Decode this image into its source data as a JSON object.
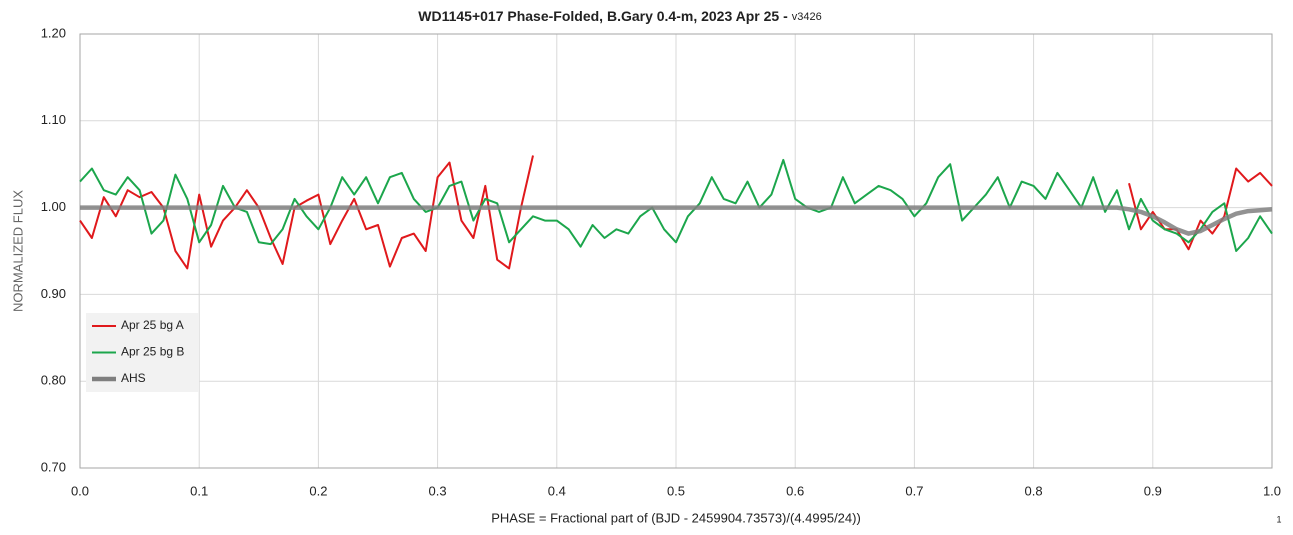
{
  "chart_data": {
    "type": "line",
    "title": "WD1145+017 Phase-Folded, B.Gary 0.4-m, 2023 Apr 25 -",
    "version": "v3426",
    "xlabel": "PHASE = Fractional part of (BJD - 2459904.73573)/(4.4995/24))",
    "ylabel": "NORMALIZED FLUX",
    "footnote": "1",
    "grid": true,
    "legend": "center left",
    "xlim": [
      0,
      1
    ],
    "ylim": [
      0.7,
      1.2
    ],
    "xticks": [
      {
        "value": 0,
        "label": "0.0"
      },
      0.1,
      0.2,
      0.3,
      0.4,
      0.5,
      0.6,
      0.7,
      0.8,
      0.9,
      {
        "value": 1,
        "label": "1.0"
      }
    ],
    "yticks": [
      {
        "value": 0.7,
        "label": "0.70"
      },
      {
        "value": 0.8,
        "label": "0.80"
      },
      {
        "value": 0.9,
        "label": "0.90"
      },
      {
        "value": 1.0,
        "label": "1.00"
      },
      {
        "value": 1.1,
        "label": "1.10"
      },
      {
        "value": 1.2,
        "label": "1.20"
      }
    ],
    "x": [
      0,
      0.01,
      0.02,
      0.03,
      0.04,
      0.05,
      0.06,
      0.07,
      0.08,
      0.09,
      0.1,
      0.11,
      0.12,
      0.13,
      0.14,
      0.15,
      0.16,
      0.17,
      0.18,
      0.19,
      0.2,
      0.21,
      0.22,
      0.23,
      0.24,
      0.25,
      0.26,
      0.27,
      0.28,
      0.29,
      0.3,
      0.31,
      0.32,
      0.33,
      0.34,
      0.35,
      0.36,
      0.37,
      0.38,
      0.39,
      0.4,
      0.41,
      0.42,
      0.43,
      0.44,
      0.45,
      0.46,
      0.47,
      0.48,
      0.49,
      0.5,
      0.51,
      0.52,
      0.53,
      0.54,
      0.55,
      0.56,
      0.57,
      0.58,
      0.59,
      0.6,
      0.61,
      0.62,
      0.63,
      0.64,
      0.65,
      0.66,
      0.67,
      0.68,
      0.69,
      0.7,
      0.71,
      0.72,
      0.73,
      0.74,
      0.75,
      0.76,
      0.77,
      0.78,
      0.79,
      0.8,
      0.81,
      0.82,
      0.83,
      0.84,
      0.85,
      0.86,
      0.87,
      0.88,
      0.89,
      0.9,
      0.91,
      0.92,
      0.93,
      0.94,
      0.95,
      0.96,
      0.97,
      0.98,
      0.99,
      1
    ],
    "series": [
      {
        "name": "Apr 25 bg A",
        "color": "#e0191c",
        "width": 2,
        "values": [
          0.985,
          0.965,
          1.012,
          0.99,
          1.02,
          1.012,
          1.018,
          1.0,
          0.95,
          0.93,
          1.015,
          0.955,
          0.985,
          1.0,
          1.02,
          1.0,
          0.965,
          0.935,
          1.0,
          1.008,
          1.015,
          0.958,
          0.985,
          1.01,
          0.975,
          0.98,
          0.932,
          0.965,
          0.97,
          0.95,
          1.035,
          1.052,
          0.985,
          0.965,
          1.025,
          0.94,
          0.93,
          1.0,
          1.06,
          null,
          null,
          null,
          null,
          null,
          null,
          null,
          null,
          null,
          null,
          null,
          null,
          null,
          null,
          null,
          null,
          null,
          null,
          null,
          null,
          null,
          null,
          null,
          null,
          null,
          null,
          null,
          null,
          null,
          null,
          null,
          null,
          null,
          null,
          null,
          null,
          null,
          null,
          null,
          null,
          null,
          null,
          null,
          null,
          null,
          null,
          null,
          null,
          null,
          1.028,
          0.975,
          0.995,
          0.975,
          0.975,
          0.952,
          0.985,
          0.97,
          0.99,
          1.045,
          1.03,
          1.04,
          1.025
        ]
      },
      {
        "name": "Apr 25 bg B",
        "color": "#1ca64c",
        "width": 2,
        "values": [
          1.03,
          1.045,
          1.02,
          1.015,
          1.035,
          1.02,
          0.97,
          0.985,
          1.038,
          1.01,
          0.96,
          0.98,
          1.025,
          1.0,
          0.995,
          0.96,
          0.958,
          0.975,
          1.01,
          0.99,
          0.975,
          1.0,
          1.035,
          1.015,
          1.035,
          1.005,
          1.035,
          1.04,
          1.01,
          0.995,
          1.0,
          1.025,
          1.03,
          0.985,
          1.01,
          1.005,
          0.96,
          0.975,
          0.99,
          0.985,
          0.985,
          0.975,
          0.955,
          0.98,
          0.965,
          0.975,
          0.97,
          0.99,
          1.0,
          0.975,
          0.96,
          0.99,
          1.005,
          1.035,
          1.01,
          1.005,
          1.03,
          1.0,
          1.015,
          1.055,
          1.01,
          1.0,
          0.995,
          1.0,
          1.035,
          1.005,
          1.015,
          1.025,
          1.02,
          1.01,
          0.99,
          1.005,
          1.035,
          1.05,
          0.985,
          1.0,
          1.015,
          1.035,
          1.0,
          1.03,
          1.025,
          1.01,
          1.04,
          1.02,
          1.0,
          1.035,
          0.995,
          1.02,
          0.975,
          1.01,
          0.985,
          0.975,
          0.97,
          0.96,
          0.975,
          0.995,
          1.005,
          0.95,
          0.965,
          0.99,
          0.97
        ]
      },
      {
        "name": "AHS",
        "color": "#7f7f7f",
        "width": 4.5,
        "values": [
          1,
          1,
          1,
          1,
          1,
          1,
          1,
          1,
          1,
          1,
          1,
          1,
          1,
          1,
          1,
          1,
          1,
          1,
          1,
          1,
          1,
          1,
          1,
          1,
          1,
          1,
          1,
          1,
          1,
          1,
          1,
          1,
          1,
          1,
          1,
          1,
          1,
          1,
          1,
          1,
          1,
          1,
          1,
          1,
          1,
          1,
          1,
          1,
          1,
          1,
          1,
          1,
          1,
          1,
          1,
          1,
          1,
          1,
          1,
          1,
          1,
          1,
          1,
          1,
          1,
          1,
          1,
          1,
          1,
          1,
          1,
          1,
          1,
          1,
          1,
          1,
          1,
          1,
          1,
          1,
          1,
          1,
          1,
          1,
          1,
          1,
          1,
          1,
          0.998,
          0.995,
          0.99,
          0.983,
          0.975,
          0.97,
          0.973,
          0.98,
          0.987,
          0.993,
          0.996,
          0.997,
          0.998
        ]
      }
    ]
  }
}
